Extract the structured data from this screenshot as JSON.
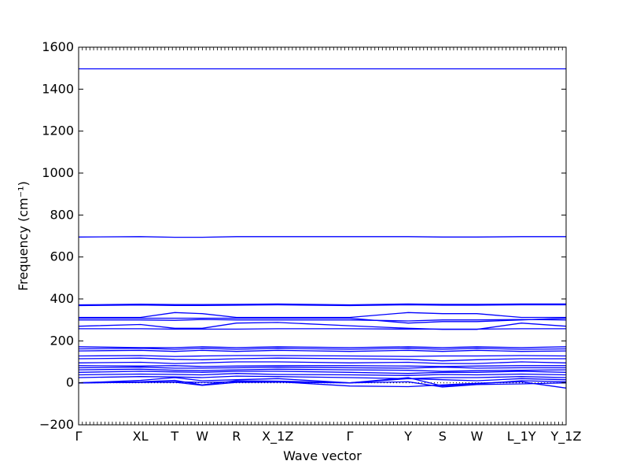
{
  "chart_data": {
    "type": "line",
    "title": "",
    "xlabel": "Wave vector",
    "ylabel": "Frequency (cm⁻¹)",
    "ylim": [
      -200,
      1600
    ],
    "yticks": [
      -200,
      0,
      200,
      400,
      600,
      800,
      1000,
      1200,
      1400,
      1600
    ],
    "x_labels": [
      "Γ",
      "XL",
      "T",
      "W",
      "R",
      "X_1Z",
      "Γ",
      "Y",
      "S",
      "W",
      "L_1Y",
      "Y_1Z"
    ],
    "xlim": [
      0,
      12.2
    ],
    "x_positions": [
      0,
      1.8,
      2.8,
      3.6,
      4.6,
      5.8,
      7.9,
      9.6,
      10.6,
      11.6,
      12.9,
      14.2
    ],
    "line_color": "#0000ff",
    "zero_line": {
      "style": "dotted",
      "color": "#000000"
    },
    "series": [
      {
        "values": [
          1497,
          1497,
          1497,
          1497,
          1497,
          1497,
          1497,
          1497,
          1497,
          1497,
          1497,
          1497
        ]
      },
      {
        "values": [
          695,
          697,
          694,
          694,
          697,
          697,
          697,
          697,
          695,
          695,
          697,
          697
        ]
      },
      {
        "values": [
          372,
          375,
          373,
          373,
          374,
          376,
          372,
          376,
          374,
          374,
          376,
          376
        ]
      },
      {
        "values": [
          368,
          371,
          369,
          369,
          370,
          372,
          368,
          372,
          370,
          370,
          372,
          372
        ]
      },
      {
        "values": [
          312,
          312,
          335,
          330,
          312,
          312,
          312,
          335,
          330,
          330,
          312,
          312
        ]
      },
      {
        "values": [
          308,
          308,
          308,
          308,
          308,
          308,
          308,
          285,
          292,
          292,
          300,
          308
        ]
      },
      {
        "values": [
          300,
          300,
          298,
          302,
          300,
          300,
          300,
          295,
          300,
          300,
          302,
          300
        ]
      },
      {
        "values": [
          270,
          278,
          260,
          260,
          285,
          288,
          272,
          260,
          255,
          255,
          285,
          270
        ]
      },
      {
        "values": [
          258,
          258,
          256,
          256,
          256,
          258,
          258,
          256,
          256,
          256,
          258,
          258
        ]
      },
      {
        "values": [
          172,
          168,
          168,
          172,
          168,
          172,
          168,
          172,
          168,
          172,
          168,
          172
        ]
      },
      {
        "values": [
          162,
          165,
          160,
          165,
          160,
          165,
          160,
          165,
          160,
          165,
          160,
          162
        ]
      },
      {
        "values": [
          152,
          155,
          150,
          155,
          150,
          155,
          150,
          155,
          150,
          155,
          150,
          152
        ]
      },
      {
        "values": [
          128,
          130,
          126,
          128,
          130,
          130,
          128,
          126,
          128,
          128,
          130,
          128
        ]
      },
      {
        "values": [
          115,
          118,
          112,
          110,
          115,
          118,
          115,
          112,
          105,
          110,
          115,
          115
        ]
      },
      {
        "values": [
          95,
          98,
          92,
          95,
          100,
          100,
          95,
          98,
          92,
          92,
          100,
          95
        ]
      },
      {
        "values": [
          82,
          80,
          82,
          78,
          80,
          82,
          82,
          80,
          78,
          80,
          82,
          82
        ]
      },
      {
        "values": [
          72,
          75,
          70,
          70,
          72,
          75,
          72,
          70,
          75,
          70,
          72,
          72
        ]
      },
      {
        "values": [
          62,
          65,
          60,
          58,
          62,
          65,
          62,
          60,
          55,
          58,
          60,
          62
        ]
      },
      {
        "values": [
          50,
          55,
          52,
          50,
          55,
          55,
          50,
          45,
          50,
          50,
          55,
          50
        ]
      },
      {
        "values": [
          38,
          42,
          40,
          38,
          45,
          40,
          38,
          35,
          40,
          38,
          42,
          38
        ]
      },
      {
        "values": [
          25,
          30,
          28,
          25,
          32,
          30,
          25,
          20,
          25,
          25,
          30,
          25
        ]
      },
      {
        "values": [
          0,
          12,
          25,
          10,
          15,
          20,
          0,
          20,
          15,
          10,
          20,
          15
        ]
      },
      {
        "values": [
          0,
          5,
          12,
          -10,
          10,
          8,
          0,
          25,
          -15,
          -5,
          10,
          5
        ]
      },
      {
        "values": [
          0,
          3,
          5,
          2,
          5,
          5,
          -15,
          -18,
          -10,
          -2,
          5,
          -25
        ]
      },
      {
        "values": [
          0,
          2,
          3,
          -12,
          2,
          3,
          0,
          5,
          -20,
          -8,
          -5,
          0
        ]
      }
    ]
  }
}
